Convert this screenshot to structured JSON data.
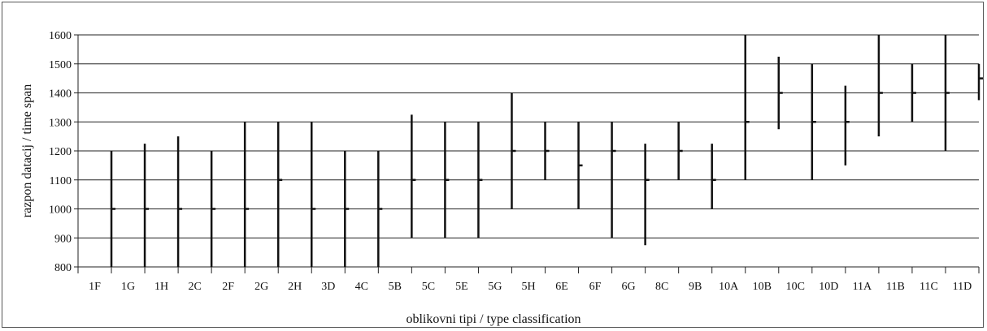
{
  "chart_data": {
    "type": "range",
    "xlabel": "oblikovni tipi / type classification",
    "ylabel": "razpon datacij / time span",
    "ylim": [
      800,
      1600
    ],
    "yticks": [
      800,
      900,
      1000,
      1100,
      1200,
      1300,
      1400,
      1500,
      1600
    ],
    "grid": true,
    "categories": [
      "1F",
      "1G",
      "1H",
      "2C",
      "2F",
      "2G",
      "2H",
      "3D",
      "4C",
      "5B",
      "5C",
      "5E",
      "5G",
      "5H",
      "6E",
      "6F",
      "6G",
      "8C",
      "9B",
      "10A",
      "10B",
      "10C",
      "10D",
      "11A",
      "11B",
      "11C",
      "11D"
    ],
    "ranges": [
      {
        "low": 800,
        "high": 1200,
        "mid": 1000
      },
      {
        "low": 800,
        "high": 1225,
        "mid": 1000
      },
      {
        "low": 800,
        "high": 1250,
        "mid": 1000
      },
      {
        "low": 800,
        "high": 1200,
        "mid": 1000
      },
      {
        "low": 800,
        "high": 1300,
        "mid": 1000
      },
      {
        "low": 800,
        "high": 1300,
        "mid": 1100
      },
      {
        "low": 800,
        "high": 1300,
        "mid": 1000
      },
      {
        "low": 800,
        "high": 1200,
        "mid": 1000
      },
      {
        "low": 800,
        "high": 1200,
        "mid": 1000
      },
      {
        "low": 900,
        "high": 1325,
        "mid": 1100
      },
      {
        "low": 900,
        "high": 1300,
        "mid": 1100
      },
      {
        "low": 900,
        "high": 1300,
        "mid": 1100
      },
      {
        "low": 1000,
        "high": 1400,
        "mid": 1200
      },
      {
        "low": 1100,
        "high": 1300,
        "mid": 1200
      },
      {
        "low": 1000,
        "high": 1300,
        "mid": 1150
      },
      {
        "low": 900,
        "high": 1300,
        "mid": 1200
      },
      {
        "low": 875,
        "high": 1225,
        "mid": 1100
      },
      {
        "low": 1100,
        "high": 1300,
        "mid": 1200
      },
      {
        "low": 1000,
        "high": 1225,
        "mid": 1100
      },
      {
        "low": 1100,
        "high": 1600,
        "mid": 1300
      },
      {
        "low": 1275,
        "high": 1525,
        "mid": 1400
      },
      {
        "low": 1100,
        "high": 1500,
        "mid": 1300
      },
      {
        "low": 1150,
        "high": 1425,
        "mid": 1300
      },
      {
        "low": 1250,
        "high": 1600,
        "mid": 1400
      },
      {
        "low": 1300,
        "high": 1500,
        "mid": 1400
      },
      {
        "low": 1200,
        "high": 1600,
        "mid": 1400
      },
      {
        "low": 1375,
        "high": 1500,
        "mid": 1450
      }
    ]
  }
}
